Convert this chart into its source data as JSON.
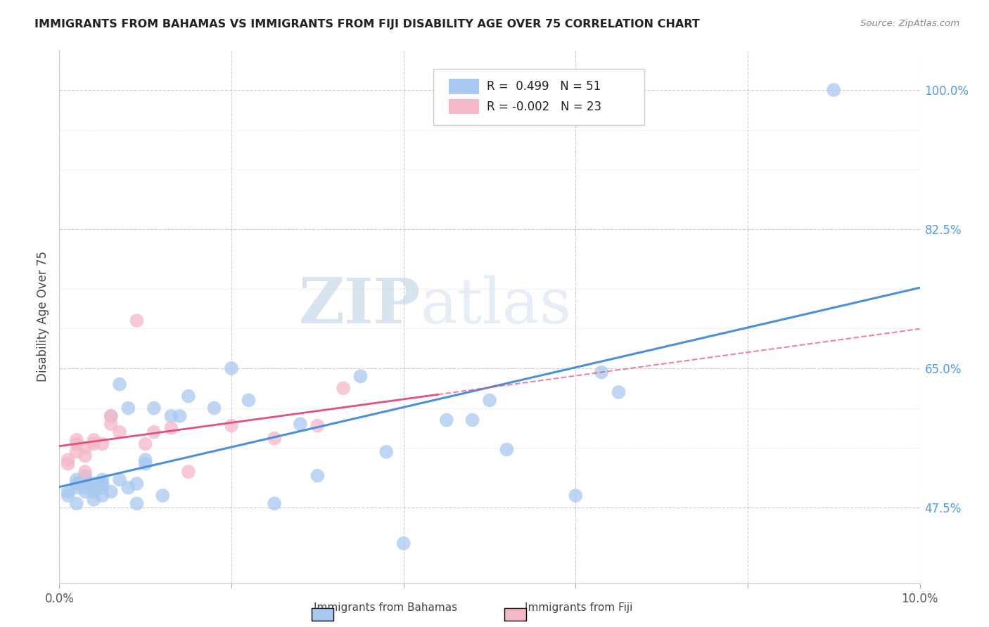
{
  "title": "IMMIGRANTS FROM BAHAMAS VS IMMIGRANTS FROM FIJI DISABILITY AGE OVER 75 CORRELATION CHART",
  "source": "Source: ZipAtlas.com",
  "ylabel": "Disability Age Over 75",
  "xmin": 0.0,
  "xmax": 0.1,
  "ymin": 0.38,
  "ymax": 1.05,
  "yline_ticks": [
    0.475,
    0.65,
    0.825,
    1.0
  ],
  "yline_labels": [
    "47.5%",
    "65.0%",
    "82.5%",
    "100.0%"
  ],
  "xticks": [
    0.0,
    0.02,
    0.04,
    0.06,
    0.08,
    0.1
  ],
  "xtick_labels": [
    "0.0%",
    "",
    "",
    "",
    "",
    "10.0%"
  ],
  "bahamas_color": "#a8c8f0",
  "fiji_color": "#f4b8c8",
  "trendline_bahamas_color": "#4a90d9",
  "trendline_fiji_color": "#e05080",
  "legend_R_bahamas": "0.499",
  "legend_N_bahamas": "51",
  "legend_R_fiji": "-0.002",
  "legend_N_fiji": "23",
  "watermark_zip": "ZIP",
  "watermark_atlas": "atlas",
  "bahamas_x": [
    0.001,
    0.001,
    0.002,
    0.002,
    0.002,
    0.002,
    0.003,
    0.003,
    0.003,
    0.003,
    0.003,
    0.004,
    0.004,
    0.004,
    0.004,
    0.005,
    0.005,
    0.005,
    0.005,
    0.006,
    0.006,
    0.007,
    0.007,
    0.008,
    0.008,
    0.009,
    0.009,
    0.01,
    0.01,
    0.011,
    0.012,
    0.013,
    0.014,
    0.015,
    0.018,
    0.02,
    0.022,
    0.025,
    0.028,
    0.03,
    0.035,
    0.038,
    0.04,
    0.045,
    0.048,
    0.05,
    0.052,
    0.06,
    0.063,
    0.065,
    0.09
  ],
  "bahamas_y": [
    0.49,
    0.495,
    0.48,
    0.5,
    0.505,
    0.51,
    0.495,
    0.5,
    0.505,
    0.51,
    0.515,
    0.485,
    0.495,
    0.5,
    0.505,
    0.49,
    0.5,
    0.505,
    0.51,
    0.495,
    0.59,
    0.51,
    0.63,
    0.5,
    0.6,
    0.48,
    0.505,
    0.53,
    0.535,
    0.6,
    0.49,
    0.59,
    0.59,
    0.615,
    0.6,
    0.65,
    0.61,
    0.48,
    0.58,
    0.515,
    0.64,
    0.545,
    0.43,
    0.585,
    0.585,
    0.61,
    0.548,
    0.49,
    0.645,
    0.62,
    1.0
  ],
  "fiji_x": [
    0.001,
    0.001,
    0.002,
    0.002,
    0.002,
    0.003,
    0.003,
    0.003,
    0.004,
    0.004,
    0.005,
    0.006,
    0.006,
    0.007,
    0.009,
    0.01,
    0.011,
    0.013,
    0.015,
    0.02,
    0.025,
    0.03,
    0.033
  ],
  "fiji_y": [
    0.53,
    0.535,
    0.545,
    0.555,
    0.56,
    0.52,
    0.54,
    0.55,
    0.555,
    0.56,
    0.555,
    0.58,
    0.59,
    0.57,
    0.71,
    0.555,
    0.57,
    0.575,
    0.52,
    0.578,
    0.562,
    0.578,
    0.625
  ],
  "background_color": "#ffffff"
}
